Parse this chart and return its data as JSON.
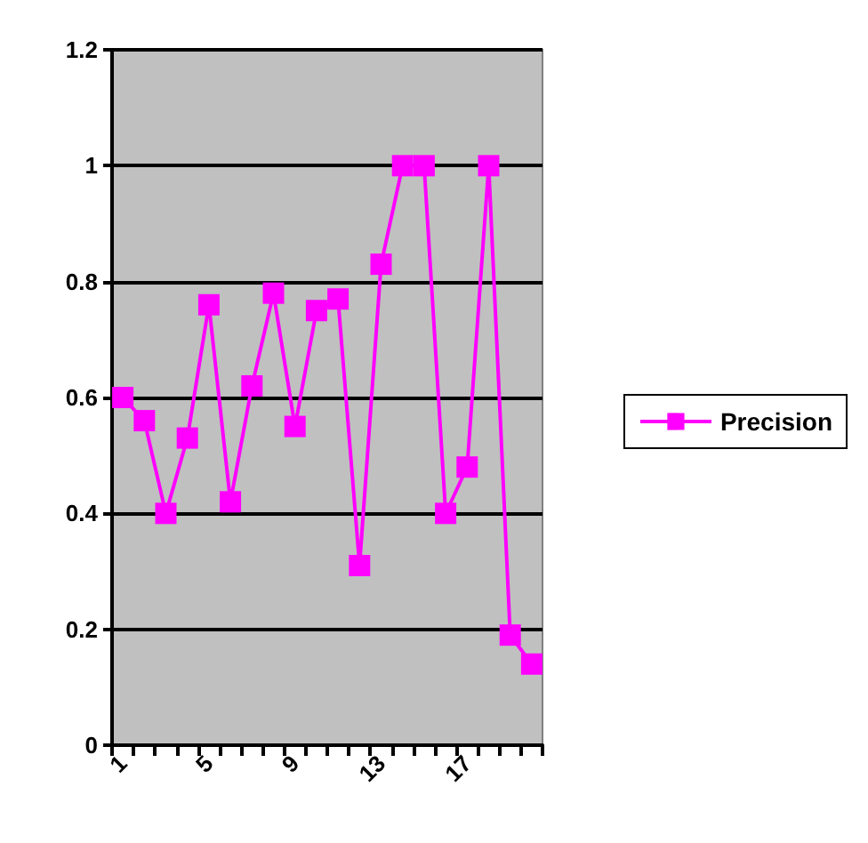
{
  "chart_data": {
    "type": "line",
    "categories": [
      "1",
      null,
      null,
      null,
      "5",
      null,
      null,
      null,
      "9",
      null,
      null,
      null,
      "13",
      null,
      null,
      null,
      "17",
      null,
      null,
      null
    ],
    "series": [
      {
        "name": "Precision",
        "color": "#ff00ff",
        "values": [
          0.6,
          0.56,
          0.4,
          0.53,
          0.76,
          0.42,
          0.62,
          0.78,
          0.55,
          0.75,
          0.77,
          0.31,
          0.83,
          1,
          1,
          0.4,
          0.48,
          1,
          0.19,
          0.14
        ]
      }
    ],
    "ylim": [
      0,
      1.2
    ],
    "yticks": [
      0,
      0.2,
      0.4,
      0.6,
      0.8,
      1,
      1.2
    ],
    "grid": "y",
    "legend": "right",
    "marker": "square",
    "line_style": "solid"
  }
}
